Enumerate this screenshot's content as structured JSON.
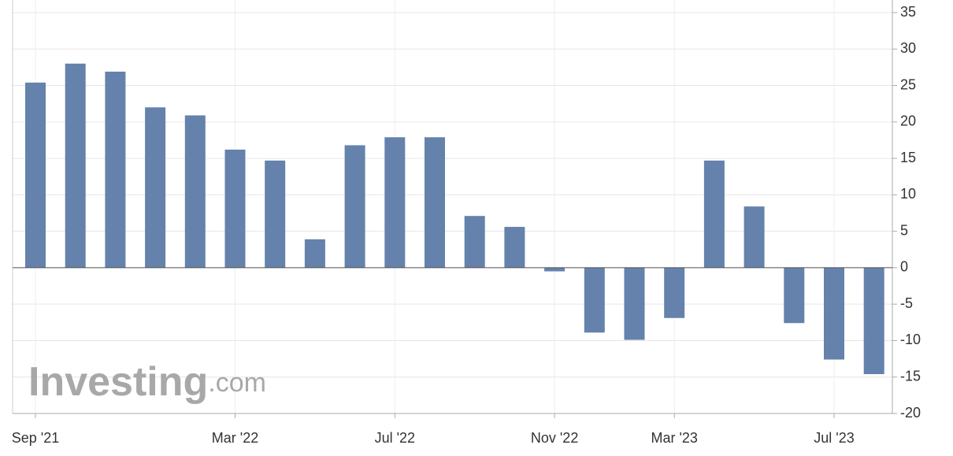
{
  "chart_data": {
    "type": "bar",
    "categories": [
      "Sep '21",
      null,
      null,
      null,
      null,
      "Mar '22",
      null,
      null,
      null,
      "Jul '22",
      null,
      null,
      null,
      "Nov '22",
      null,
      null,
      "Mar '23",
      null,
      null,
      null,
      "Jul '23",
      null
    ],
    "values": [
      25.4,
      28,
      26.9,
      22,
      20.9,
      16.2,
      14.7,
      3.9,
      16.8,
      17.9,
      17.9,
      7.1,
      5.6,
      -0.5,
      -8.9,
      -9.9,
      -6.9,
      14.7,
      8.4,
      -7.6,
      -12.6,
      -14.6
    ],
    "color": "#6482ab",
    "ylim": [
      -20,
      35
    ],
    "yticks": [
      -20,
      -15,
      -10,
      -5,
      0,
      5,
      10,
      15,
      20,
      25,
      30,
      35
    ],
    "grid": true,
    "watermark": "Investing",
    "watermark_suffix": ".com"
  }
}
